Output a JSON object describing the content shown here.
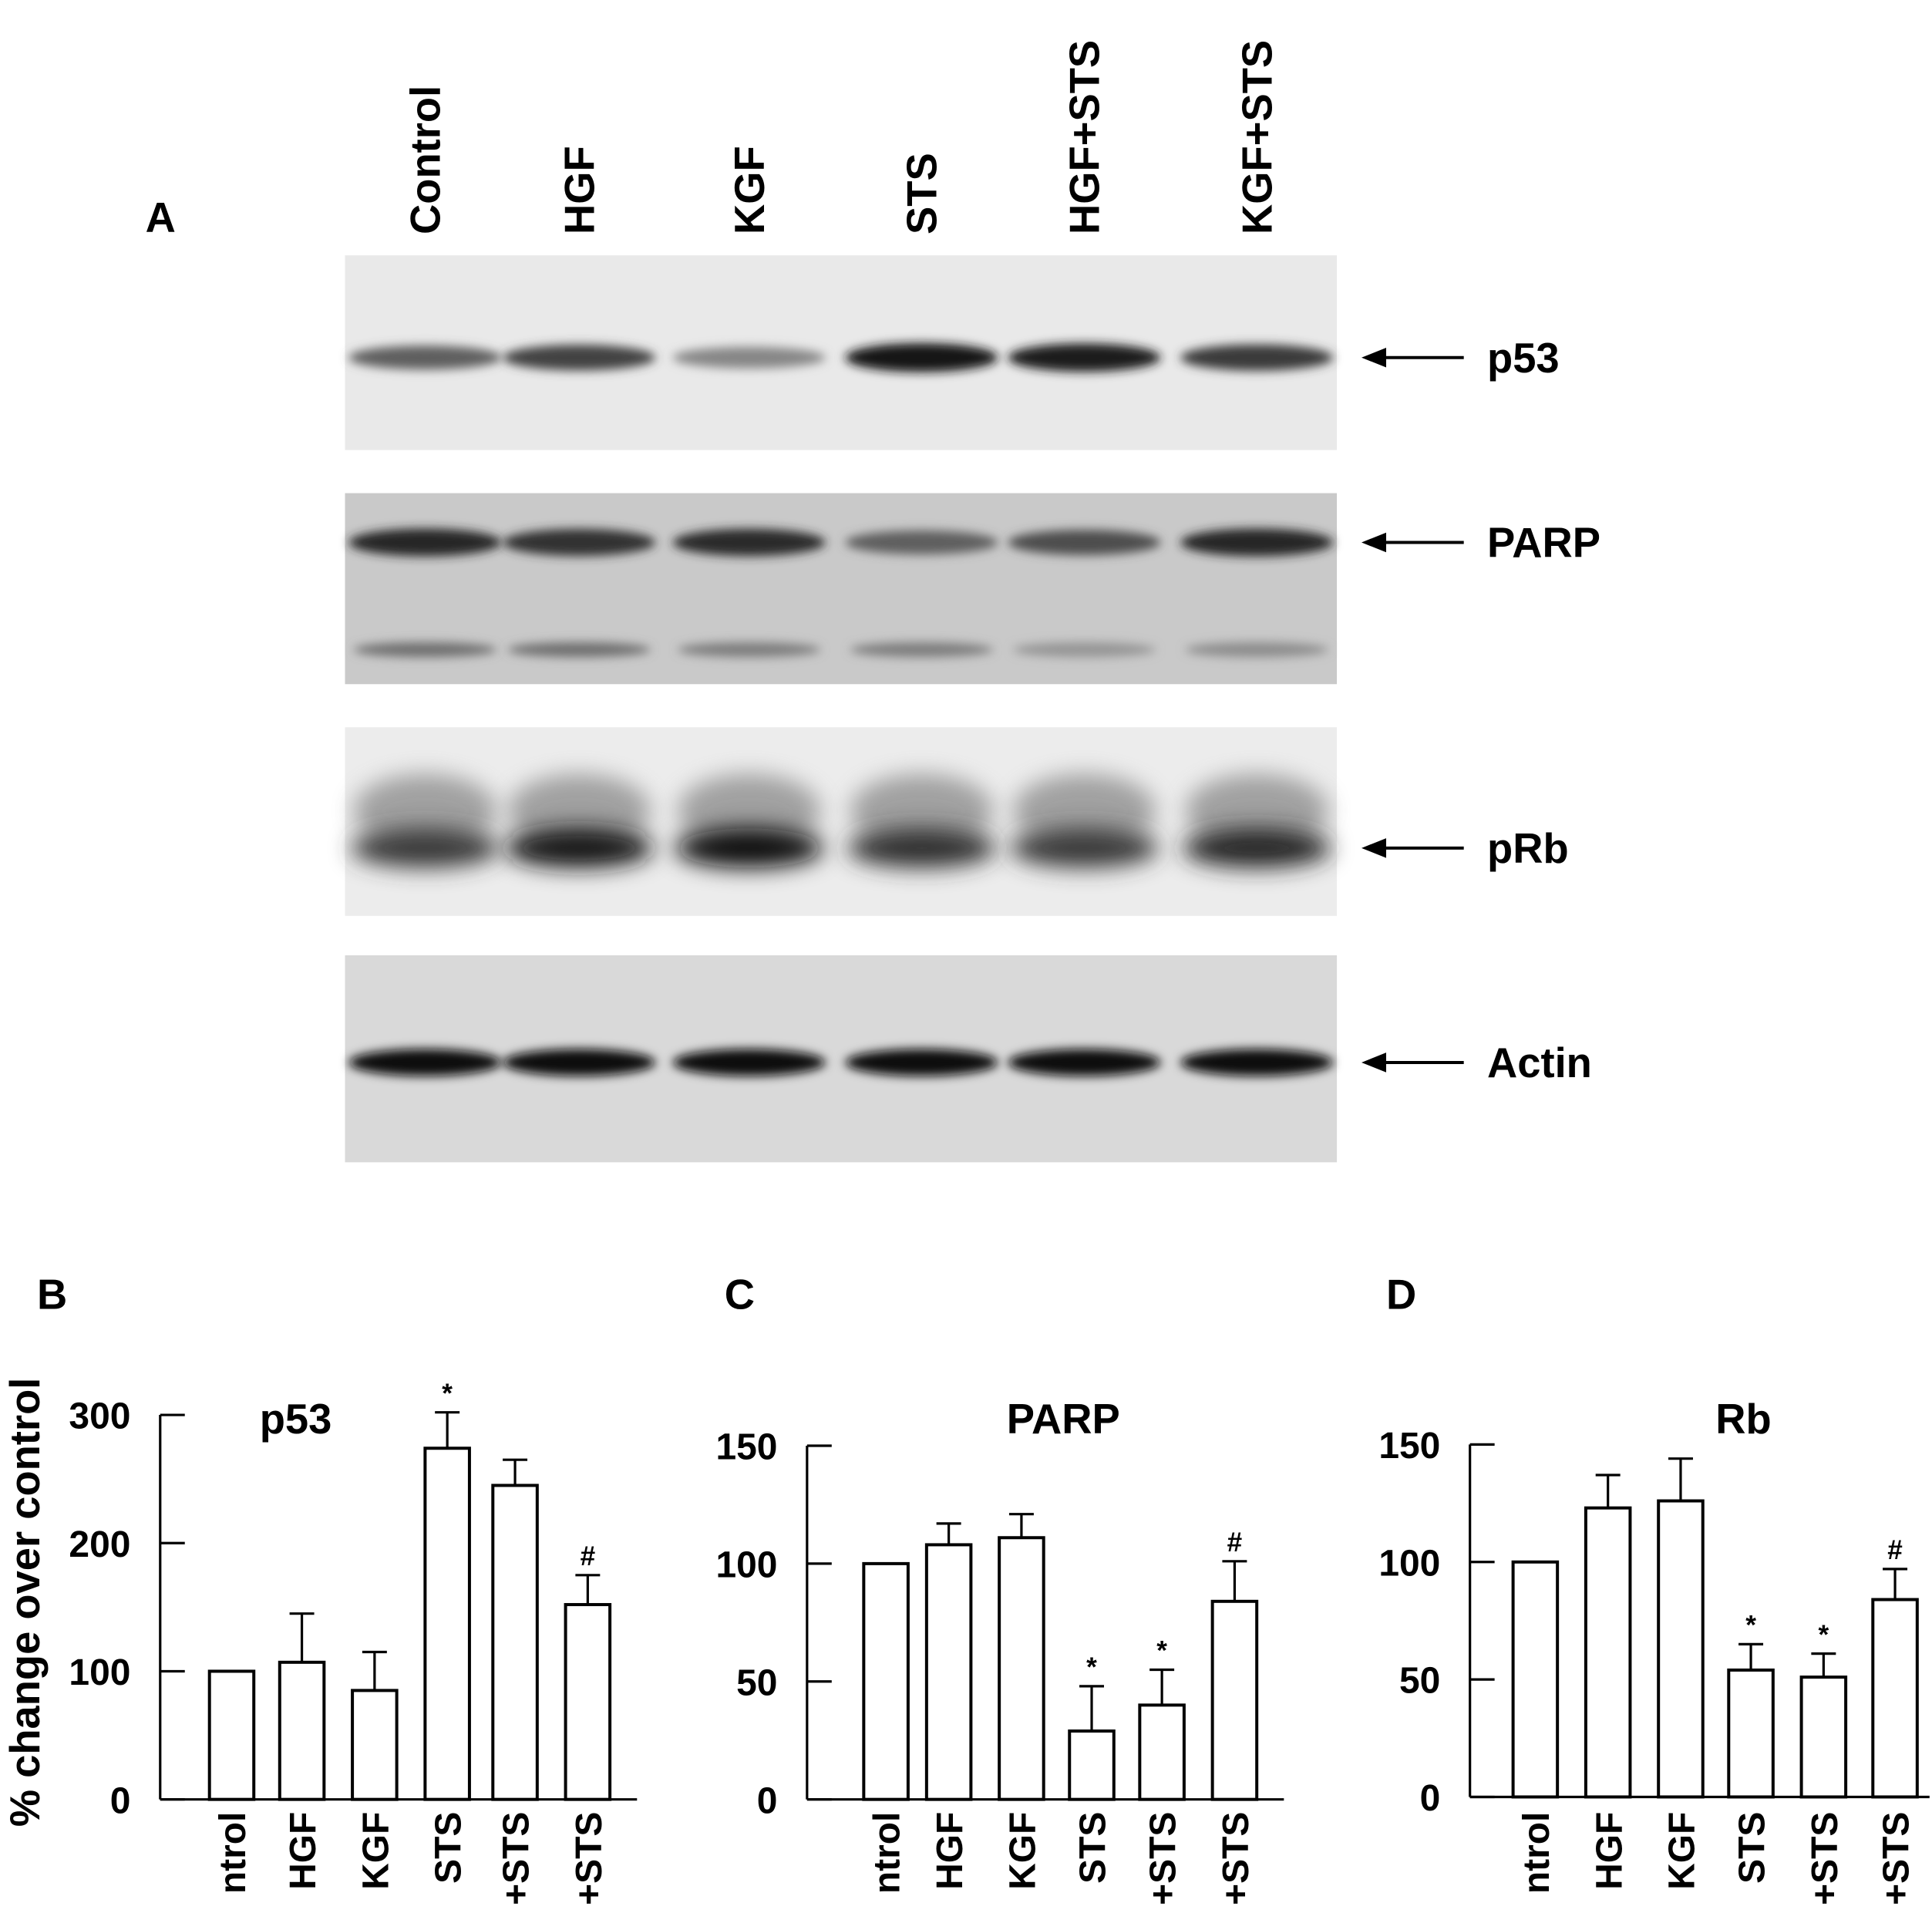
{
  "panel_a": {
    "letter": "A",
    "lanes": [
      "Control",
      "HGF",
      "KGF",
      "STS",
      "HGF+STS",
      "KGF+STS"
    ],
    "blots": [
      {
        "label": "p53",
        "background": "#e9e9e9",
        "bands": [
          0.55,
          0.7,
          0.35,
          0.95,
          0.9,
          0.75
        ]
      },
      {
        "label": "PARP",
        "background": "#c9c9c9",
        "bands": [
          0.85,
          0.8,
          0.82,
          0.55,
          0.65,
          0.85
        ],
        "lower_bands": [
          0.6,
          0.6,
          0.5,
          0.5,
          0.35,
          0.4
        ]
      },
      {
        "label": "pRb",
        "background": "#ececec",
        "bands": [
          0.75,
          0.95,
          1.0,
          0.8,
          0.75,
          0.85
        ]
      },
      {
        "label": "Actin",
        "background": "#d9d9d9",
        "bands": [
          1.0,
          1.0,
          1.0,
          1.0,
          1.0,
          1.0
        ]
      }
    ]
  },
  "y_axis_label": "% change over control",
  "chart_data": [
    {
      "type": "bar",
      "panel": "B",
      "title": "p53",
      "categories": [
        "Control",
        "HGF",
        "KGF",
        "STS",
        "HGF+STS",
        "KGF+STS"
      ],
      "values": [
        100,
        107,
        85,
        274,
        245,
        152
      ],
      "errors": [
        0,
        38,
        30,
        28,
        20,
        23
      ],
      "annotations": [
        "",
        "",
        "",
        "*",
        "",
        "#"
      ],
      "ylim": [
        0,
        300
      ],
      "yticks": [
        "0",
        "100",
        "200",
        "300"
      ],
      "ytick_values": [
        0,
        100,
        200,
        300
      ]
    },
    {
      "type": "bar",
      "panel": "C",
      "title": "PARP",
      "categories": [
        "Control",
        "HGF",
        "KGF",
        "STS",
        "HGF+STS",
        "KGF+STS"
      ],
      "values": [
        100,
        108,
        111,
        29,
        40,
        84
      ],
      "errors": [
        0,
        9,
        10,
        19,
        15,
        17
      ],
      "annotations": [
        "",
        "",
        "",
        "*",
        "*",
        "#"
      ],
      "ylim": [
        0,
        150
      ],
      "yticks": [
        "0",
        "50",
        "100",
        "150"
      ],
      "ytick_values": [
        0,
        50,
        100,
        150
      ]
    },
    {
      "type": "bar",
      "panel": "D",
      "title": "Rb",
      "categories": [
        "Control",
        "HGF",
        "KGF",
        "STS",
        "HGF+STS",
        "KGF+STS"
      ],
      "values": [
        100,
        123,
        126,
        54,
        51,
        84
      ],
      "errors": [
        0,
        14,
        18,
        11,
        10,
        13
      ],
      "annotations": [
        "",
        "",
        "",
        "*",
        "*",
        "#"
      ],
      "ylim": [
        0,
        150
      ],
      "yticks": [
        "0",
        "50",
        "100",
        "150"
      ],
      "ytick_values": [
        0,
        50,
        100,
        150
      ]
    }
  ]
}
